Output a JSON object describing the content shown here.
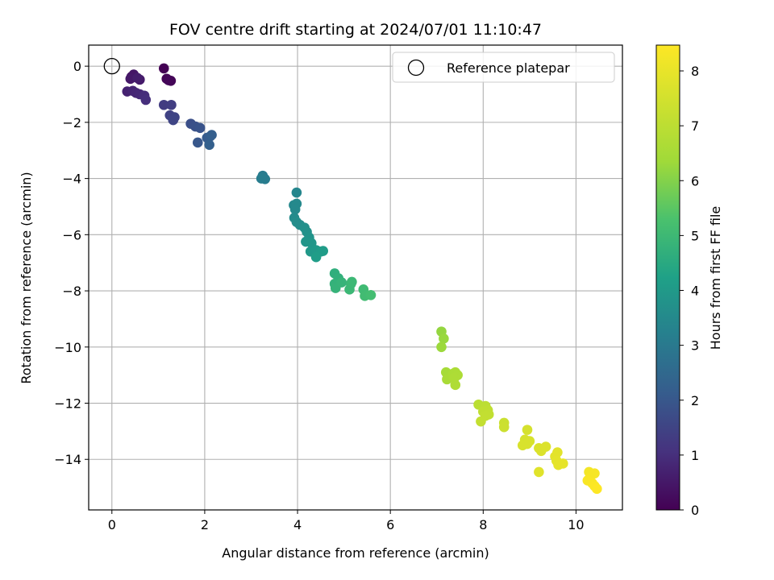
{
  "chart_data": {
    "type": "scatter",
    "title": "FOV centre drift starting at 2024/07/01 11:10:47",
    "xlabel": "Angular distance from reference (arcmin)",
    "ylabel": "Rotation from reference (arcmin)",
    "xlim": [
      -0.5,
      11.0
    ],
    "ylim": [
      -15.8,
      0.75
    ],
    "xticks": [
      0,
      2,
      4,
      6,
      8,
      10
    ],
    "yticks": [
      0,
      -2,
      -4,
      -6,
      -8,
      -10,
      -12,
      -14
    ],
    "grid": true,
    "legend": {
      "placement": "top-right",
      "entries": [
        "Reference platepar"
      ]
    },
    "reference_point": {
      "x": 0,
      "y": 0,
      "marker": "open-circle"
    },
    "colorbar": {
      "label": "Hours from first FF file",
      "colormap": "viridis",
      "range": [
        0,
        8.47
      ],
      "ticks": [
        0,
        1,
        2,
        3,
        4,
        5,
        6,
        7,
        8
      ]
    },
    "points": [
      {
        "x": 1.12,
        "y": -0.08,
        "h": 0.0
      },
      {
        "x": 1.18,
        "y": -0.45,
        "h": 0.05
      },
      {
        "x": 1.27,
        "y": -0.52,
        "h": 0.08
      },
      {
        "x": 1.22,
        "y": -0.5,
        "h": 0.1
      },
      {
        "x": 0.42,
        "y": -0.38,
        "h": 0.4
      },
      {
        "x": 0.47,
        "y": -0.3,
        "h": 0.45
      },
      {
        "x": 0.4,
        "y": -0.45,
        "h": 0.5
      },
      {
        "x": 0.6,
        "y": -0.48,
        "h": 0.55
      },
      {
        "x": 0.55,
        "y": -0.42,
        "h": 0.6
      },
      {
        "x": 0.33,
        "y": -0.9,
        "h": 0.7
      },
      {
        "x": 0.45,
        "y": -0.88,
        "h": 0.75
      },
      {
        "x": 0.52,
        "y": -0.95,
        "h": 0.8
      },
      {
        "x": 0.6,
        "y": -1.0,
        "h": 0.85
      },
      {
        "x": 0.7,
        "y": -1.05,
        "h": 0.95
      },
      {
        "x": 0.73,
        "y": -1.2,
        "h": 1.0
      },
      {
        "x": 1.12,
        "y": -1.38,
        "h": 1.3
      },
      {
        "x": 1.28,
        "y": -1.38,
        "h": 1.35
      },
      {
        "x": 1.25,
        "y": -1.75,
        "h": 1.45
      },
      {
        "x": 1.35,
        "y": -1.82,
        "h": 1.5
      },
      {
        "x": 1.32,
        "y": -1.92,
        "h": 1.55
      },
      {
        "x": 1.7,
        "y": -2.05,
        "h": 1.8
      },
      {
        "x": 1.8,
        "y": -2.15,
        "h": 1.85
      },
      {
        "x": 1.9,
        "y": -2.2,
        "h": 1.9
      },
      {
        "x": 1.85,
        "y": -2.72,
        "h": 2.0
      },
      {
        "x": 2.05,
        "y": -2.55,
        "h": 2.1
      },
      {
        "x": 2.12,
        "y": -2.5,
        "h": 2.15
      },
      {
        "x": 2.15,
        "y": -2.45,
        "h": 2.2
      },
      {
        "x": 2.1,
        "y": -2.8,
        "h": 2.25
      },
      {
        "x": 3.25,
        "y": -3.9,
        "h": 3.05
      },
      {
        "x": 3.3,
        "y": -4.02,
        "h": 3.1
      },
      {
        "x": 3.22,
        "y": -4.0,
        "h": 3.12
      },
      {
        "x": 3.98,
        "y": -4.5,
        "h": 3.4
      },
      {
        "x": 3.92,
        "y": -4.95,
        "h": 3.45
      },
      {
        "x": 3.98,
        "y": -4.9,
        "h": 3.48
      },
      {
        "x": 3.95,
        "y": -5.1,
        "h": 3.5
      },
      {
        "x": 3.93,
        "y": -5.4,
        "h": 3.55
      },
      {
        "x": 3.98,
        "y": -5.55,
        "h": 3.6
      },
      {
        "x": 4.05,
        "y": -5.65,
        "h": 3.62
      },
      {
        "x": 4.15,
        "y": -5.75,
        "h": 3.7
      },
      {
        "x": 4.2,
        "y": -5.9,
        "h": 3.75
      },
      {
        "x": 4.25,
        "y": -6.1,
        "h": 3.8
      },
      {
        "x": 4.18,
        "y": -6.25,
        "h": 3.85
      },
      {
        "x": 4.3,
        "y": -6.3,
        "h": 3.88
      },
      {
        "x": 4.28,
        "y": -6.6,
        "h": 3.95
      },
      {
        "x": 4.4,
        "y": -6.55,
        "h": 4.0
      },
      {
        "x": 4.5,
        "y": -6.6,
        "h": 4.05
      },
      {
        "x": 4.55,
        "y": -6.58,
        "h": 4.08
      },
      {
        "x": 4.4,
        "y": -6.8,
        "h": 4.1
      },
      {
        "x": 4.8,
        "y": -7.38,
        "h": 4.65
      },
      {
        "x": 4.88,
        "y": -7.55,
        "h": 4.7
      },
      {
        "x": 4.8,
        "y": -7.75,
        "h": 4.75
      },
      {
        "x": 4.82,
        "y": -7.9,
        "h": 4.8
      },
      {
        "x": 4.95,
        "y": -7.7,
        "h": 4.82
      },
      {
        "x": 5.15,
        "y": -7.75,
        "h": 4.9
      },
      {
        "x": 5.12,
        "y": -7.95,
        "h": 4.95
      },
      {
        "x": 5.17,
        "y": -7.68,
        "h": 4.98
      },
      {
        "x": 5.42,
        "y": -7.95,
        "h": 5.05
      },
      {
        "x": 5.45,
        "y": -8.18,
        "h": 5.1
      },
      {
        "x": 5.58,
        "y": -8.15,
        "h": 5.15
      },
      {
        "x": 7.1,
        "y": -9.45,
        "h": 6.2
      },
      {
        "x": 7.15,
        "y": -9.7,
        "h": 6.25
      },
      {
        "x": 7.1,
        "y": -10.0,
        "h": 6.3
      },
      {
        "x": 7.2,
        "y": -10.9,
        "h": 6.5
      },
      {
        "x": 7.22,
        "y": -11.15,
        "h": 6.55
      },
      {
        "x": 7.35,
        "y": -10.95,
        "h": 6.6
      },
      {
        "x": 7.4,
        "y": -10.9,
        "h": 6.62
      },
      {
        "x": 7.45,
        "y": -11.0,
        "h": 6.65
      },
      {
        "x": 7.38,
        "y": -11.1,
        "h": 6.68
      },
      {
        "x": 7.4,
        "y": -11.35,
        "h": 6.7
      },
      {
        "x": 7.9,
        "y": -12.05,
        "h": 6.95
      },
      {
        "x": 8.05,
        "y": -12.1,
        "h": 7.0
      },
      {
        "x": 8.1,
        "y": -12.25,
        "h": 7.05
      },
      {
        "x": 8.0,
        "y": -12.3,
        "h": 7.08
      },
      {
        "x": 8.12,
        "y": -12.4,
        "h": 7.1
      },
      {
        "x": 8.05,
        "y": -12.45,
        "h": 7.12
      },
      {
        "x": 7.95,
        "y": -12.65,
        "h": 7.15
      },
      {
        "x": 8.45,
        "y": -12.7,
        "h": 7.3
      },
      {
        "x": 8.45,
        "y": -12.85,
        "h": 7.35
      },
      {
        "x": 8.95,
        "y": -12.95,
        "h": 7.55
      },
      {
        "x": 8.9,
        "y": -13.3,
        "h": 7.58
      },
      {
        "x": 9.0,
        "y": -13.35,
        "h": 7.6
      },
      {
        "x": 8.85,
        "y": -13.5,
        "h": 7.62
      },
      {
        "x": 8.95,
        "y": -13.45,
        "h": 7.63
      },
      {
        "x": 9.2,
        "y": -13.6,
        "h": 7.68
      },
      {
        "x": 9.25,
        "y": -13.7,
        "h": 7.7
      },
      {
        "x": 9.35,
        "y": -13.55,
        "h": 7.72
      },
      {
        "x": 9.2,
        "y": -14.45,
        "h": 7.8
      },
      {
        "x": 9.6,
        "y": -13.75,
        "h": 7.85
      },
      {
        "x": 9.55,
        "y": -13.9,
        "h": 7.88
      },
      {
        "x": 9.58,
        "y": -14.05,
        "h": 7.9
      },
      {
        "x": 9.62,
        "y": -14.2,
        "h": 7.92
      },
      {
        "x": 9.72,
        "y": -14.15,
        "h": 7.95
      },
      {
        "x": 10.28,
        "y": -14.45,
        "h": 8.25
      },
      {
        "x": 10.4,
        "y": -14.5,
        "h": 8.3
      },
      {
        "x": 10.3,
        "y": -14.65,
        "h": 8.32
      },
      {
        "x": 10.25,
        "y": -14.75,
        "h": 8.35
      },
      {
        "x": 10.35,
        "y": -14.85,
        "h": 8.38
      },
      {
        "x": 10.4,
        "y": -14.95,
        "h": 8.42
      },
      {
        "x": 10.45,
        "y": -15.05,
        "h": 8.47
      }
    ]
  }
}
